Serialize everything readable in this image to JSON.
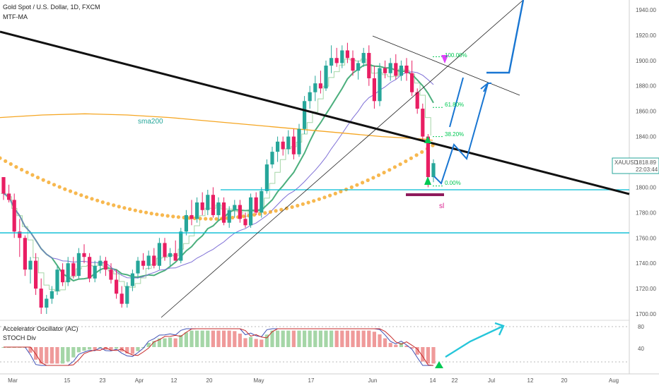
{
  "header": {
    "symbol_line": "Gold Spot / U.S. Dollar, 1D, FXCM",
    "indicator": "MTF-MA",
    "osc1": "Accelerator Oscillator (AC)",
    "osc2": "STOCH Div"
  },
  "price_badge": {
    "symbol": "XAUUSD",
    "price": "1818.89",
    "countdown": "22:03:44",
    "color": "#26a69a"
  },
  "colors": {
    "up": "#26a69a",
    "down": "#e91e63",
    "sma200": "#f5a623",
    "ma_green": "#4caf7d",
    "ma_purple": "#7e6fd6",
    "support": "#00bcd4",
    "trend": "#111111",
    "projection": "#1976d2",
    "fib": "#00c853",
    "osc_up": "#a5d6a7",
    "osc_down": "#ef9a9a"
  },
  "chart_data": {
    "type": "candlestick",
    "ylim": [
      1695,
      1945
    ],
    "y_ticks": [
      "1940.00",
      "1920.00",
      "1900.00",
      "1880.00",
      "1860.00",
      "1840.00",
      "1820.00",
      "1800.00",
      "1780.00",
      "1760.00",
      "1740.00",
      "1720.00",
      "1700.00"
    ],
    "x_ticks": [
      "Mar",
      "15",
      "23",
      "Apr",
      "12",
      "20",
      "May",
      "17",
      "Jun",
      "14",
      "22",
      "Jul",
      "12",
      "20",
      "Aug"
    ],
    "annotations": {
      "sma_label": "sma200",
      "sl_label": "sl",
      "fib_levels": [
        {
          "label": "100.00%",
          "price": 1903
        },
        {
          "label": "61.80%",
          "price": 1863
        },
        {
          "label": "38.20%",
          "price": 1840
        },
        {
          "label": "0.00%",
          "price": 1801
        }
      ],
      "support_levels": [
        1798,
        1764
      ]
    },
    "oscillator_ticks": [
      "80",
      "40"
    ],
    "candles": [
      [
        1808,
        1808,
        1790,
        1795
      ],
      [
        1795,
        1802,
        1788,
        1790
      ],
      [
        1790,
        1795,
        1760,
        1765
      ],
      [
        1765,
        1775,
        1745,
        1760
      ],
      [
        1760,
        1762,
        1730,
        1735
      ],
      [
        1735,
        1745,
        1724,
        1742
      ],
      [
        1742,
        1748,
        1715,
        1720
      ],
      [
        1720,
        1728,
        1700,
        1705
      ],
      [
        1705,
        1715,
        1700,
        1712
      ],
      [
        1712,
        1722,
        1708,
        1718
      ],
      [
        1718,
        1738,
        1715,
        1735
      ],
      [
        1735,
        1740,
        1722,
        1725
      ],
      [
        1725,
        1745,
        1722,
        1740
      ],
      [
        1740,
        1745,
        1728,
        1730
      ],
      [
        1730,
        1752,
        1728,
        1748
      ],
      [
        1748,
        1755,
        1740,
        1745
      ],
      [
        1745,
        1748,
        1725,
        1728
      ],
      [
        1728,
        1742,
        1725,
        1738
      ],
      [
        1738,
        1746,
        1732,
        1742
      ],
      [
        1742,
        1745,
        1730,
        1735
      ],
      [
        1735,
        1740,
        1724,
        1727
      ],
      [
        1727,
        1735,
        1712,
        1716
      ],
      [
        1716,
        1722,
        1705,
        1708
      ],
      [
        1708,
        1725,
        1705,
        1722
      ],
      [
        1722,
        1735,
        1718,
        1732
      ],
      [
        1732,
        1745,
        1728,
        1742
      ],
      [
        1742,
        1748,
        1735,
        1738
      ],
      [
        1738,
        1750,
        1735,
        1746
      ],
      [
        1746,
        1752,
        1736,
        1738
      ],
      [
        1738,
        1760,
        1735,
        1756
      ],
      [
        1756,
        1760,
        1742,
        1745
      ],
      [
        1745,
        1752,
        1738,
        1748
      ],
      [
        1748,
        1758,
        1742,
        1742
      ],
      [
        1742,
        1768,
        1740,
        1765
      ],
      [
        1765,
        1782,
        1762,
        1778
      ],
      [
        1778,
        1790,
        1770,
        1775
      ],
      [
        1775,
        1792,
        1772,
        1788
      ],
      [
        1788,
        1796,
        1778,
        1782
      ],
      [
        1782,
        1798,
        1778,
        1794
      ],
      [
        1794,
        1800,
        1776,
        1778
      ],
      [
        1778,
        1792,
        1774,
        1788
      ],
      [
        1788,
        1792,
        1770,
        1772
      ],
      [
        1772,
        1785,
        1768,
        1782
      ],
      [
        1782,
        1790,
        1776,
        1786
      ],
      [
        1786,
        1790,
        1772,
        1775
      ],
      [
        1775,
        1780,
        1768,
        1770
      ],
      [
        1770,
        1795,
        1768,
        1792
      ],
      [
        1792,
        1796,
        1778,
        1780
      ],
      [
        1780,
        1800,
        1776,
        1797
      ],
      [
        1797,
        1822,
        1795,
        1818
      ],
      [
        1818,
        1832,
        1815,
        1828
      ],
      [
        1828,
        1840,
        1820,
        1836
      ],
      [
        1836,
        1840,
        1825,
        1830
      ],
      [
        1830,
        1845,
        1826,
        1840
      ],
      [
        1840,
        1846,
        1822,
        1826
      ],
      [
        1826,
        1850,
        1824,
        1846
      ],
      [
        1846,
        1872,
        1842,
        1868
      ],
      [
        1868,
        1880,
        1862,
        1875
      ],
      [
        1875,
        1888,
        1868,
        1882
      ],
      [
        1882,
        1892,
        1874,
        1878
      ],
      [
        1878,
        1900,
        1876,
        1896
      ],
      [
        1896,
        1912,
        1890,
        1902
      ],
      [
        1902,
        1910,
        1895,
        1898
      ],
      [
        1898,
        1912,
        1894,
        1908
      ],
      [
        1908,
        1914,
        1898,
        1902
      ],
      [
        1902,
        1908,
        1888,
        1892
      ],
      [
        1892,
        1900,
        1885,
        1898
      ],
      [
        1898,
        1910,
        1895,
        1906
      ],
      [
        1906,
        1912,
        1880,
        1886
      ],
      [
        1886,
        1896,
        1862,
        1868
      ],
      [
        1868,
        1898,
        1864,
        1894
      ],
      [
        1894,
        1900,
        1886,
        1890
      ],
      [
        1890,
        1902,
        1884,
        1898
      ],
      [
        1898,
        1905,
        1885,
        1888
      ],
      [
        1888,
        1900,
        1884,
        1896
      ],
      [
        1896,
        1902,
        1884,
        1890
      ],
      [
        1890,
        1900,
        1872,
        1875
      ],
      [
        1875,
        1878,
        1858,
        1862
      ],
      [
        1862,
        1866,
        1836,
        1840
      ],
      [
        1840,
        1842,
        1800,
        1808
      ],
      [
        1808,
        1822,
        1804,
        1819
      ]
    ],
    "sma200_points": [
      [
        0,
        1855
      ],
      [
        60,
        1857
      ],
      [
        120,
        1858
      ],
      [
        180,
        1857
      ],
      [
        240,
        1855
      ],
      [
        300,
        1852
      ],
      [
        360,
        1849
      ],
      [
        420,
        1846
      ],
      [
        480,
        1843
      ],
      [
        540,
        1840
      ],
      [
        600,
        1838
      ],
      [
        612,
        1837
      ]
    ]
  }
}
